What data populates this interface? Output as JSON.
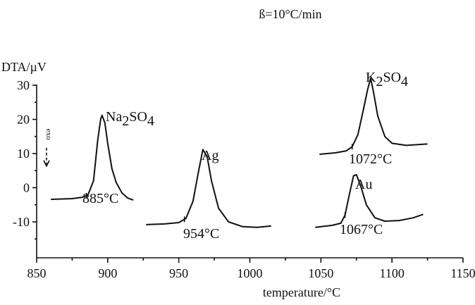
{
  "chart_data": {
    "type": "line",
    "title": "ß=10°C/min",
    "xlabel": "temperature/°C",
    "ylabel": "DTA/µV",
    "xlim": [
      850,
      1150
    ],
    "ylim": [
      -15,
      30
    ],
    "x_ticks": [
      "850",
      "900",
      "950",
      "1000",
      "1050",
      "1100",
      "1150"
    ],
    "y_ticks": [
      "30",
      "20",
      "10",
      "0",
      "-10"
    ],
    "exo_marker": {
      "label": "exo",
      "y": 15
    },
    "series": [
      {
        "name": "Na2SO4",
        "label_main": "Na",
        "label_sub1": "2",
        "label_mid": "SO",
        "label_sub2": "4",
        "onset_label": "885°C",
        "x": [
          860,
          875,
          882,
          886,
          890,
          893,
          895,
          896,
          898,
          900,
          903,
          906,
          910,
          914,
          918
        ],
        "y": [
          -3.4,
          -3.2,
          -2.8,
          -2.2,
          2,
          14,
          20,
          21.2,
          19,
          13,
          5.5,
          1.5,
          -1.5,
          -3,
          -3.6
        ]
      },
      {
        "name": "Ag",
        "label_main": "Ag",
        "label_sub1": "",
        "label_mid": "",
        "label_sub2": "",
        "onset_label": "954°C",
        "x": [
          927,
          940,
          950,
          955,
          960,
          964,
          967,
          970,
          973,
          978,
          985,
          995,
          1005,
          1015
        ],
        "y": [
          -10.8,
          -10.6,
          -10.2,
          -9,
          -4,
          5,
          11.2,
          9,
          2,
          -6,
          -10,
          -11.4,
          -11.6,
          -11.2
        ]
      },
      {
        "name": "K2SO4",
        "label_main": "K",
        "label_sub1": "2",
        "label_mid": "SO",
        "label_sub2": "4",
        "onset_label": "1072°C",
        "x": [
          1049,
          1060,
          1068,
          1072,
          1076,
          1080,
          1083,
          1085,
          1087,
          1090,
          1095,
          1100,
          1110,
          1125
        ],
        "y": [
          9.8,
          10.2,
          10.8,
          12,
          15.5,
          23,
          29,
          32,
          28,
          21,
          15,
          13,
          12.4,
          12.8
        ]
      },
      {
        "name": "Au",
        "label_main": "Au",
        "label_sub1": "",
        "label_mid": "",
        "label_sub2": "",
        "onset_label": "1067°C",
        "x": [
          1046,
          1058,
          1064,
          1067,
          1070,
          1073,
          1075,
          1078,
          1082,
          1088,
          1095,
          1105,
          1115,
          1122
        ],
        "y": [
          -11.6,
          -11,
          -10.4,
          -8,
          -2,
          3.5,
          3.8,
          0.5,
          -5,
          -8.8,
          -9.8,
          -9.6,
          -8.8,
          -7.8
        ]
      }
    ]
  }
}
